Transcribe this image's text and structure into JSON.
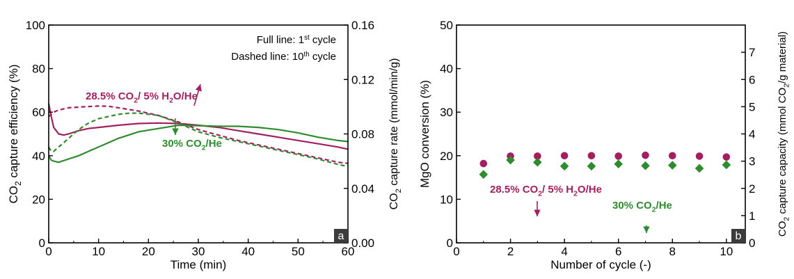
{
  "chart_data": [
    {
      "type": "line",
      "panel_label": "a",
      "xlabel": "Time (min)",
      "ylabel_left": {
        "prefix": "CO",
        "sub": "2",
        "suffix": " capture efficiency (%)"
      },
      "ylabel_right": {
        "prefix": "CO",
        "sub": "2",
        "suffix": " capture rate (mmol/min/g)"
      },
      "xlim": [
        0,
        60
      ],
      "ylim_left": [
        0,
        100
      ],
      "ylim_right": [
        0,
        0.16
      ],
      "x_ticks": [
        "0",
        "10",
        "20",
        "30",
        "40",
        "50",
        "60"
      ],
      "y_ticks_left": [
        "0",
        "20",
        "40",
        "60",
        "80",
        "100"
      ],
      "y_ticks_right": [
        "0.00",
        "0.04",
        "0.08",
        "0.12",
        "0.16"
      ],
      "legend_note": {
        "line1": {
          "text": "Full line: 1",
          "sup": "st",
          "after": " cycle"
        },
        "line2": {
          "text": "Dashed line: 10",
          "sup": "th",
          "after": " cycle"
        }
      },
      "annotations": [
        {
          "prefix": "28.5% CO",
          "sub": "2",
          "suffix": "/ 5% H",
          "sub2": "2",
          "suffix2": "O/He",
          "color": "#a31f5f"
        },
        {
          "prefix": "30% CO",
          "sub": "2",
          "suffix": "/He",
          "color": "#2e8b2e"
        }
      ],
      "series": [
        {
          "name": "28.5% CO2/ 5% H2O/He 1st cycle",
          "color": "#a31f5f",
          "style": "solid",
          "x": [
            0,
            0.5,
            1,
            2,
            3,
            4,
            6,
            8,
            10,
            14,
            18,
            22,
            26,
            30,
            34,
            38,
            42,
            46,
            50,
            54,
            58,
            60
          ],
          "y": [
            64,
            58,
            53,
            50,
            49.5,
            50,
            51.5,
            52.5,
            53,
            54,
            54.8,
            55,
            54.8,
            54,
            53,
            51.5,
            50,
            48.5,
            47,
            45.5,
            44,
            43
          ]
        },
        {
          "name": "28.5% CO2/ 5% H2O/He 10th cycle",
          "color": "#a31f5f",
          "style": "dashed",
          "x": [
            0,
            1,
            2,
            4,
            6,
            8,
            10,
            12,
            14,
            18,
            22,
            26,
            30,
            34,
            38,
            42,
            46,
            50,
            54,
            58,
            60
          ],
          "y": [
            58,
            60,
            61,
            62,
            62.3,
            62.6,
            62.8,
            62.7,
            62,
            60.5,
            58.5,
            55.5,
            52,
            49.5,
            47,
            45,
            43,
            41,
            39,
            37,
            36.5
          ]
        },
        {
          "name": "30% CO2/He 1st cycle",
          "color": "#2e8b2e",
          "style": "solid",
          "x": [
            0,
            0.5,
            1,
            2,
            4,
            6,
            8,
            10,
            12,
            14,
            18,
            22,
            26,
            30,
            34,
            38,
            42,
            46,
            50,
            54,
            58,
            60
          ],
          "y": [
            40,
            38,
            37.5,
            37,
            38.5,
            40,
            42,
            44,
            46,
            48,
            51,
            52.5,
            54,
            53.8,
            53.5,
            53.5,
            53,
            52,
            50.5,
            48.5,
            47,
            46.5
          ]
        },
        {
          "name": "30% CO2/He 10th cycle",
          "color": "#2e8b2e",
          "style": "dashed",
          "x": [
            0,
            0.5,
            1,
            2,
            4,
            6,
            8,
            10,
            12,
            14,
            16,
            18,
            22,
            26,
            30,
            34,
            38,
            42,
            46,
            50,
            54,
            58,
            60
          ],
          "y": [
            44,
            42,
            42,
            44,
            48,
            52,
            55,
            57,
            58,
            59,
            59.5,
            59.6,
            58.5,
            55,
            51,
            48.5,
            46.5,
            44.5,
            42.5,
            40.5,
            38.5,
            36,
            35
          ]
        }
      ]
    },
    {
      "type": "scatter",
      "panel_label": "b",
      "xlabel": "Number of cycle (-)",
      "ylabel_left": {
        "prefix": "MgO conversion (%)",
        "sub": "",
        "suffix": ""
      },
      "ylabel_right": {
        "prefix": "CO",
        "sub": "2",
        "suffix": " capture capacity (mmol CO",
        "sub2": "2",
        "suffix2": "/g material)"
      },
      "xlim": [
        0,
        10.7
      ],
      "ylim_left": [
        0,
        50
      ],
      "ylim_right": [
        0,
        8
      ],
      "x_ticks": [
        "0",
        "2",
        "4",
        "6",
        "8",
        "10"
      ],
      "y_ticks_left": [
        "0",
        "10",
        "20",
        "30",
        "40",
        "50"
      ],
      "y_ticks_right": [
        "0",
        "1",
        "2",
        "3",
        "4",
        "5",
        "6",
        "7"
      ],
      "annotations": [
        {
          "prefix": "28.5% CO",
          "sub": "2",
          "suffix": "/ 5% H",
          "sub2": "2",
          "suffix2": "O/He",
          "color": "#a31f5f"
        },
        {
          "prefix": "30% CO",
          "sub": "2",
          "suffix": "/He",
          "color": "#2e8b2e"
        }
      ],
      "series": [
        {
          "name": "28.5% CO2/ 5% H2O/He",
          "color": "#a31f5f",
          "marker": "circle",
          "x": [
            1,
            2,
            3,
            4,
            5,
            6,
            7,
            8,
            9,
            10
          ],
          "y": [
            18.2,
            19.9,
            19.9,
            20.0,
            20.0,
            19.9,
            20.1,
            20.0,
            19.9,
            19.7
          ]
        },
        {
          "name": "30% CO2/He",
          "color": "#2e8b2e",
          "marker": "diamond",
          "x": [
            1,
            2,
            3,
            4,
            5,
            6,
            7,
            8,
            9,
            10
          ],
          "y": [
            15.7,
            19.0,
            18.5,
            17.6,
            17.6,
            18.1,
            17.7,
            17.8,
            17.1,
            17.9
          ]
        }
      ]
    }
  ]
}
